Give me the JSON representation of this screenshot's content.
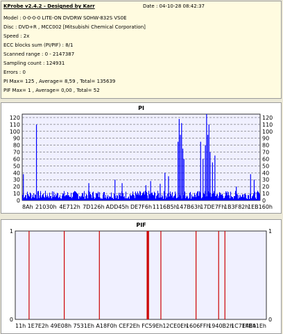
{
  "info": {
    "title": "KProbe v2.4.2 - Designed by Karr",
    "date": "Date : 04-10-28 08:42:37",
    "lines": [
      "Model : 0-0-0-0 LITE-ON DVDRW SOHW-832S  VS0E",
      "Disc : DVD+R , MCC002 [Mitsubishi Chemical Corporation]",
      "Speed : 2x",
      "ECC blocks sum (PI/PIF) : 8/1",
      "Scanned range : 0 - 2147387",
      "Sampling count : 124931",
      "Errors : 0",
      "PI Max= 125 , Average= 8,59 , Total= 135639",
      "PIF Max= 1 , Average= 0,00 , Total= 52"
    ]
  },
  "chart_data": [
    {
      "type": "bar",
      "title": "PI",
      "ylim": [
        0,
        125
      ],
      "yticks": [
        0,
        10,
        20,
        30,
        40,
        50,
        60,
        70,
        80,
        90,
        100,
        110,
        120
      ],
      "xticks": [
        "8Ah",
        "21030h",
        "4E712h",
        "7D126h",
        "ADD45h",
        "DE7F6h",
        "1116B5h",
        "147B63h",
        "17DE7Fh",
        "1B3F82h",
        "1EB160h"
      ],
      "baseline_max": 12,
      "spikes": [
        {
          "x": 0.06,
          "value": 110
        },
        {
          "x": 0.005,
          "value": 38
        },
        {
          "x": 0.28,
          "value": 25
        },
        {
          "x": 0.39,
          "value": 30
        },
        {
          "x": 0.42,
          "value": 25
        },
        {
          "x": 0.52,
          "value": 22
        },
        {
          "x": 0.54,
          "value": 28
        },
        {
          "x": 0.58,
          "value": 24
        },
        {
          "x": 0.6,
          "value": 40
        },
        {
          "x": 0.615,
          "value": 35
        },
        {
          "x": 0.655,
          "value": 85
        },
        {
          "x": 0.66,
          "value": 118
        },
        {
          "x": 0.665,
          "value": 95
        },
        {
          "x": 0.67,
          "value": 112
        },
        {
          "x": 0.675,
          "value": 75
        },
        {
          "x": 0.68,
          "value": 60
        },
        {
          "x": 0.75,
          "value": 85
        },
        {
          "x": 0.76,
          "value": 60
        },
        {
          "x": 0.77,
          "value": 80
        },
        {
          "x": 0.775,
          "value": 125
        },
        {
          "x": 0.78,
          "value": 95
        },
        {
          "x": 0.785,
          "value": 110
        },
        {
          "x": 0.79,
          "value": 70
        },
        {
          "x": 0.8,
          "value": 55
        },
        {
          "x": 0.81,
          "value": 65
        },
        {
          "x": 0.9,
          "value": 20
        },
        {
          "x": 0.96,
          "value": 38
        },
        {
          "x": 0.975,
          "value": 30
        }
      ]
    },
    {
      "type": "bar",
      "title": "PIF",
      "ylim": [
        0,
        1
      ],
      "yticks": [
        0,
        1
      ],
      "xticks": [
        "11h",
        "1E7E2h",
        "49E08h",
        "7531Eh",
        "A18F0h",
        "CEF2Eh",
        "FC59Eh",
        "12CE0Eh",
        "1606FFh",
        "1940B2h",
        "1C7E4Eh",
        "1FB41Eh"
      ],
      "events": [
        0.055,
        0.195,
        0.335,
        0.525,
        0.528,
        0.531,
        0.58,
        0.72,
        0.81,
        0.835
      ]
    }
  ]
}
